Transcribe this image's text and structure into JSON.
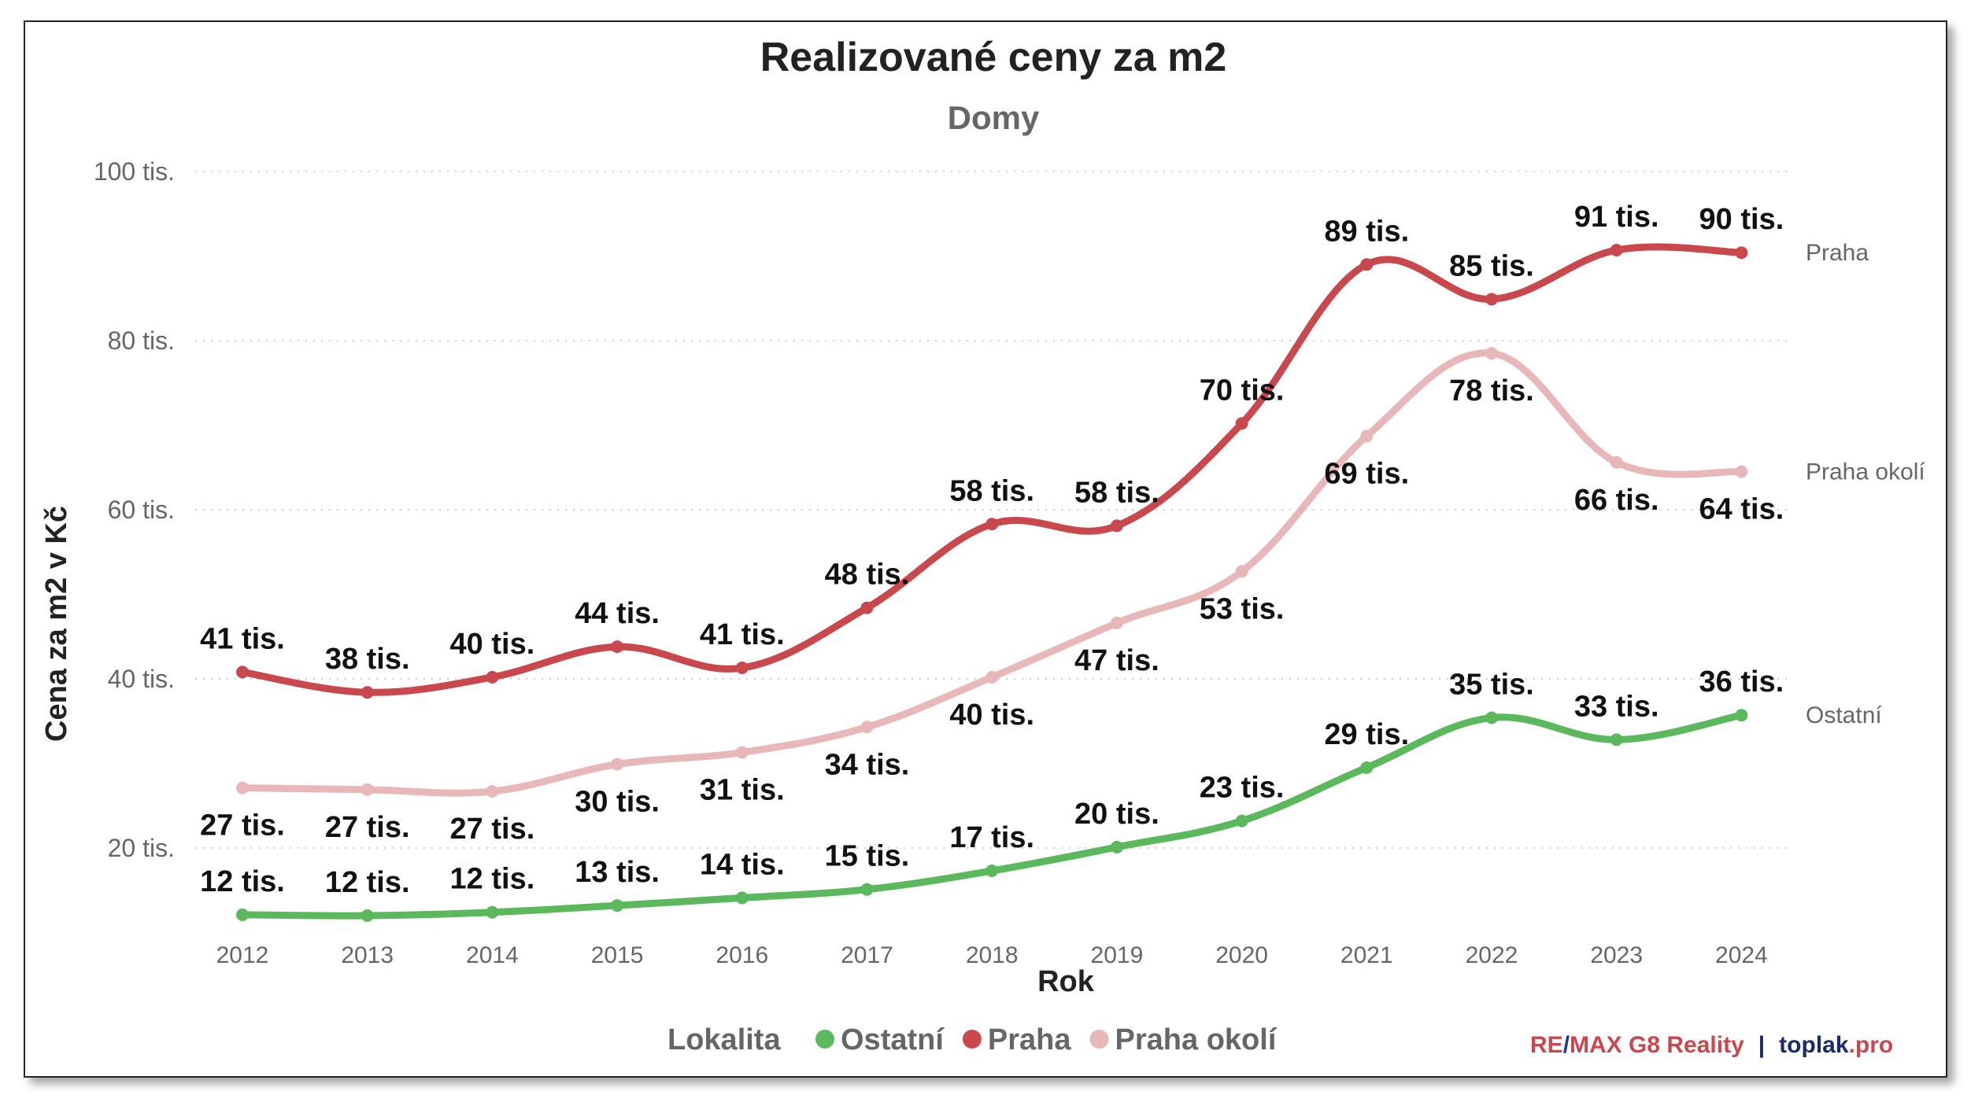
{
  "chart_data": {
    "type": "line",
    "title": "Realizované ceny za m2",
    "subtitle": "Domy",
    "xlabel": "Rok",
    "ylabel": "Cena za m2 v Kč",
    "ylim": [
      8000,
      100000
    ],
    "yticks": [
      {
        "value": 20000,
        "label": "20 tis."
      },
      {
        "value": 40000,
        "label": "40 tis."
      },
      {
        "value": 60000,
        "label": "60 tis."
      },
      {
        "value": 80000,
        "label": "80 tis."
      },
      {
        "value": 100000,
        "label": "100 tis."
      }
    ],
    "categories": [
      "2012",
      "2013",
      "2014",
      "2015",
      "2016",
      "2017",
      "2018",
      "2019",
      "2020",
      "2021",
      "2022",
      "2023",
      "2024"
    ],
    "grid": true,
    "legend": {
      "title": "Lokalita",
      "placement": "bottom"
    },
    "series": [
      {
        "name": "Ostatní",
        "color": "#5cb85c",
        "values": [
          12100,
          12000,
          12400,
          13200,
          14100,
          15100,
          17300,
          20100,
          23200,
          29500,
          35400,
          32800,
          35700
        ],
        "labels": [
          "12 tis.",
          "12 tis.",
          "12 tis.",
          "13 tis.",
          "14 tis.",
          "15 tis.",
          "17 tis.",
          "20 tis.",
          "23 tis.",
          "29 tis.",
          "35 tis.",
          "33 tis.",
          "36 tis."
        ],
        "label_pos": [
          "above",
          "above",
          "above",
          "above",
          "above",
          "above",
          "above",
          "above",
          "above",
          "above",
          "above",
          "above",
          "above"
        ]
      },
      {
        "name": "Praha",
        "color": "#c9484e",
        "values": [
          40800,
          38400,
          40200,
          43800,
          41300,
          48400,
          58300,
          58100,
          70200,
          89000,
          84900,
          90700,
          90400
        ],
        "labels": [
          "41 tis.",
          "38 tis.",
          "40 tis.",
          "44 tis.",
          "41 tis.",
          "48 tis.",
          "58 tis.",
          "58 tis.",
          "70 tis.",
          "89 tis.",
          "85 tis.",
          "91 tis.",
          "90 tis."
        ],
        "label_pos": [
          "above",
          "above",
          "above",
          "above",
          "above",
          "above",
          "above",
          "above",
          "above",
          "above",
          "above",
          "above",
          "above"
        ]
      },
      {
        "name": "Praha okolí",
        "color": "#e8b7ba",
        "values": [
          27100,
          26900,
          26700,
          29900,
          31300,
          34300,
          40200,
          46600,
          52700,
          68700,
          78500,
          65600,
          64500
        ],
        "labels": [
          "27 tis.",
          "27 tis.",
          "27 tis.",
          "30 tis.",
          "31 tis.",
          "34 tis.",
          "40 tis.",
          "47 tis.",
          "53 tis.",
          "69 tis.",
          "78 tis.",
          "66 tis.",
          "64 tis."
        ],
        "label_pos": [
          "below",
          "below",
          "below",
          "below",
          "below",
          "below",
          "below",
          "below",
          "below",
          "below",
          "below",
          "below",
          "below"
        ]
      }
    ]
  },
  "credit": {
    "part1": "RE",
    "sep1": "/",
    "part2": "MAX G8 Reality",
    "sep2": "|",
    "part3": "toplak",
    "part4": ".pro",
    "colors": {
      "remax_red": "#c9484e",
      "remax_blue": "#1f3a93",
      "navy": "#1b2a6b"
    }
  }
}
